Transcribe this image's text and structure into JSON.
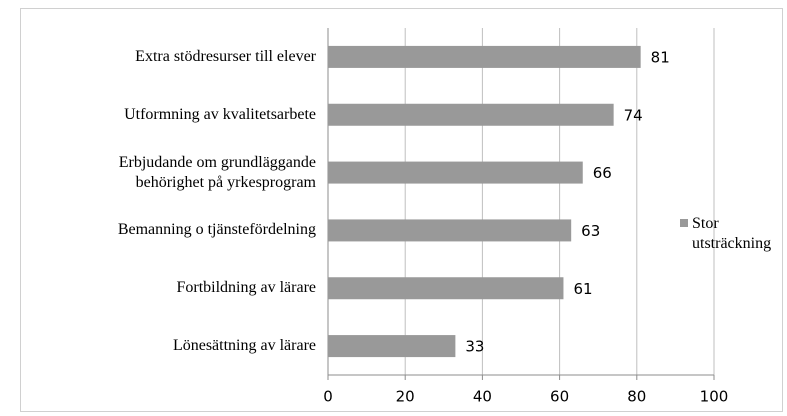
{
  "chart_data": {
    "type": "barh",
    "categories": [
      "Extra stödresurser till elever",
      "Utformning av kvalitetsarbete",
      "Erbjudande om grundläggande behörighet på yrkesprogram",
      "Bemanning o tjänstefördelning",
      "Fortbildning av lärare",
      "Lönesättning av lärare"
    ],
    "series": [
      {
        "name": "Stor utsträckning",
        "color": "#999999",
        "values": [
          81,
          74,
          66,
          63,
          61,
          33
        ]
      }
    ],
    "xlim": [
      0,
      100
    ],
    "xticks": [
      0,
      20,
      40,
      60,
      80,
      100
    ],
    "grid": true,
    "legend": "right"
  }
}
